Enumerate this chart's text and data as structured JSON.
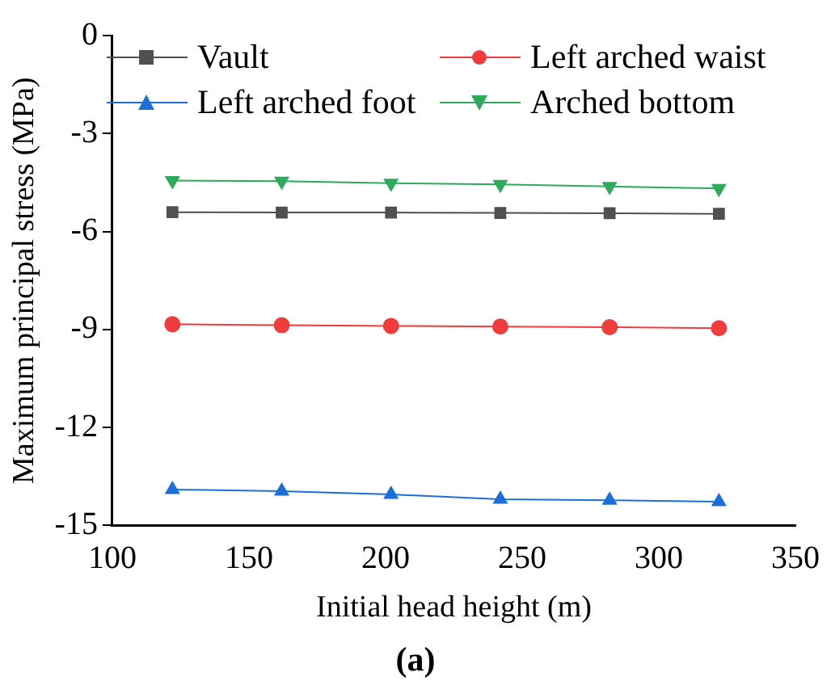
{
  "chart_data": {
    "type": "line",
    "xlabel": "Initial head height (m)",
    "ylabel": "Maximum principal stress (MPa)",
    "x": [
      122,
      162,
      202,
      242,
      282,
      322
    ],
    "series": [
      {
        "name": "Vault",
        "color": "#505050",
        "marker": "square",
        "values": [
          -5.41,
          -5.42,
          -5.42,
          -5.43,
          -5.44,
          -5.46
        ]
      },
      {
        "name": "Left arched waist",
        "color": "#f03c3c",
        "marker": "circle",
        "values": [
          -8.84,
          -8.87,
          -8.89,
          -8.91,
          -8.93,
          -8.96
        ]
      },
      {
        "name": "Left arched foot",
        "color": "#1a6fd8",
        "marker": "triangle",
        "values": [
          -13.9,
          -13.95,
          -14.05,
          -14.2,
          -14.23,
          -14.27
        ]
      },
      {
        "name": "Arched bottom",
        "color": "#2daa5a",
        "marker": "triangle-down",
        "values": [
          -4.44,
          -4.46,
          -4.52,
          -4.56,
          -4.62,
          -4.68
        ]
      }
    ],
    "xlim": [
      100,
      350
    ],
    "xticks": [
      100,
      150,
      200,
      250,
      300,
      350
    ],
    "ylim": [
      -15,
      0
    ],
    "yticks": [
      -15,
      -12,
      -9,
      -6,
      -3,
      0
    ],
    "grid": false,
    "legend": "top",
    "line_style": "solid",
    "annotations": [
      "(a)"
    ]
  }
}
